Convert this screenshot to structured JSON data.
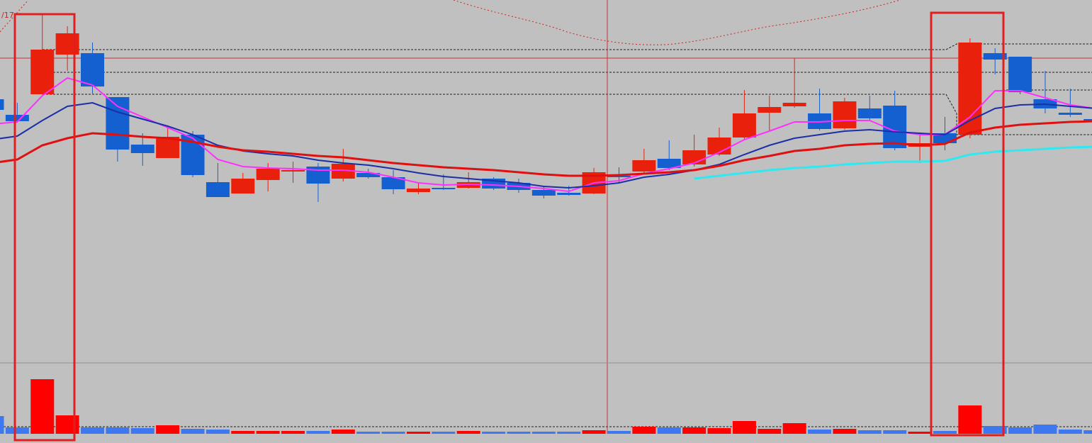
{
  "chart_data": {
    "type": "candlestick",
    "label": "/17",
    "open": [
      370,
      348,
      377,
      433,
      435,
      373,
      306,
      287,
      320,
      253,
      237,
      256,
      269,
      275,
      258,
      266,
      260,
      239,
      245,
      245,
      258,
      252,
      242,
      238,
      237,
      262,
      268,
      286,
      278,
      292,
      316,
      351,
      360,
      350,
      329,
      357,
      361,
      303,
      322,
      320,
      435,
      430,
      370,
      351,
      342
    ],
    "high": [
      370,
      365,
      490,
      473,
      450,
      373,
      322,
      332,
      325,
      280,
      266,
      280,
      282,
      280,
      300,
      272,
      270,
      252,
      264,
      267,
      260,
      258,
      248,
      248,
      273,
      274,
      300,
      312,
      320,
      330,
      383,
      375,
      428,
      385,
      372,
      375,
      382,
      322,
      345,
      456,
      442,
      430,
      410,
      385,
      345
    ],
    "low": [
      355,
      339,
      377,
      410,
      378,
      282,
      276,
      287,
      260,
      232,
      237,
      240,
      252,
      225,
      254,
      258,
      236,
      236,
      242,
      244,
      242,
      238,
      230,
      234,
      236,
      252,
      265,
      270,
      275,
      290,
      314,
      325,
      358,
      326,
      327,
      340,
      298,
      280,
      298,
      315,
      405,
      377,
      350,
      345,
      335
    ],
    "close": [
      355,
      339,
      440,
      463,
      388,
      299,
      294,
      317,
      263,
      232,
      258,
      272,
      270,
      251,
      279,
      260,
      243,
      244,
      243,
      253,
      244,
      242,
      234,
      235,
      267,
      260,
      284,
      273,
      298,
      316,
      350,
      359,
      365,
      328,
      367,
      343,
      301,
      308,
      308,
      450,
      426,
      380,
      357,
      348,
      338
    ],
    "up_color": "#e8200c",
    "down_color": "#1560d0",
    "ylim": [
      0,
      510
    ],
    "series": [
      {
        "color": "#ff30ff",
        "values": [
          335,
          338,
          375,
          400,
          390,
          360,
          345,
          330,
          315,
          285,
          275,
          273,
          272,
          270,
          270,
          267,
          260,
          252,
          249,
          250,
          249,
          247,
          244,
          240,
          252,
          255,
          265,
          272,
          280,
          295,
          313,
          325,
          338,
          338,
          340,
          340,
          325,
          320,
          320,
          345,
          382,
          382,
          372,
          362,
          357
        ]
      },
      {
        "color": "#1a2fa8",
        "values": [
          313,
          318,
          340,
          360,
          365,
          352,
          342,
          332,
          320,
          305,
          297,
          293,
          290,
          284,
          280,
          277,
          272,
          266,
          261,
          258,
          255,
          252,
          247,
          245,
          248,
          252,
          260,
          264,
          270,
          278,
          292,
          305,
          315,
          320,
          325,
          327,
          324,
          322,
          320,
          340,
          357,
          362,
          363,
          360,
          357
        ]
      },
      {
        "color": "#e01010",
        "values": [
          280,
          285,
          305,
          315,
          322,
          320,
          317,
          315,
          310,
          303,
          298,
          296,
          293,
          290,
          288,
          284,
          280,
          277,
          274,
          272,
          270,
          267,
          264,
          262,
          262,
          263,
          265,
          267,
          270,
          276,
          284,
          290,
          297,
          300,
          305,
          307,
          308,
          305,
          307,
          323,
          330,
          334,
          336,
          338,
          339
        ]
      },
      {
        "color": "#30e8f0",
        "values": [
          null,
          null,
          null,
          null,
          null,
          null,
          null,
          null,
          null,
          null,
          null,
          null,
          null,
          null,
          null,
          null,
          null,
          null,
          null,
          null,
          null,
          null,
          null,
          null,
          null,
          null,
          null,
          null,
          258,
          262,
          266,
          270,
          273,
          275,
          278,
          280,
          282,
          282,
          283,
          292,
          296,
          298,
          300,
          302,
          303
        ]
      }
    ],
    "volume": {
      "values": [
        25,
        9,
        77,
        26,
        9,
        9,
        8,
        12,
        7,
        6,
        4,
        4,
        4,
        4,
        6,
        3,
        3,
        3,
        3,
        4,
        3,
        3,
        3,
        3,
        5,
        4,
        10,
        9,
        9,
        8,
        18,
        7,
        15,
        6,
        7,
        5,
        5,
        3,
        4,
        40,
        11,
        9,
        13,
        6,
        5
      ],
      "ylim": [
        0,
        100
      ],
      "up_color": "#ff0000",
      "down_color": "#3d78f0"
    }
  }
}
